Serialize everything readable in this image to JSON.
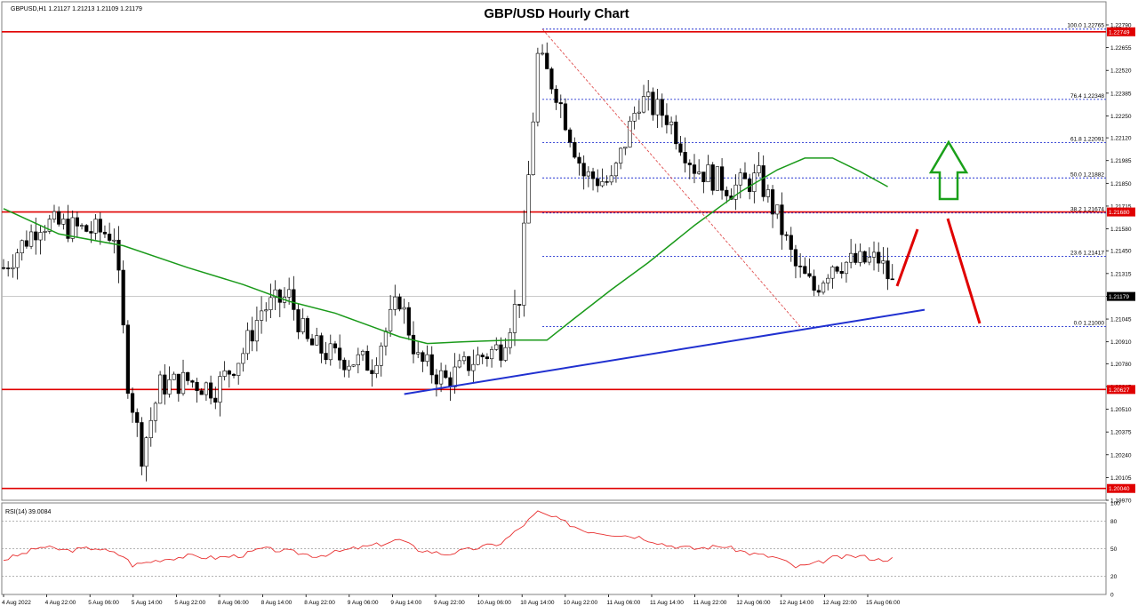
{
  "header": {
    "symbol_info": "GBPUSD,H1  1.21127 1.21213 1.21109 1.21179",
    "title": "GBP/USD Hourly Chart"
  },
  "colors": {
    "bull_candle": "#ffffff",
    "bear_candle": "#000000",
    "ma": "#1a9a1a",
    "support_line": "#2030d0",
    "horizontal_level": "#e00000",
    "fib": "#2030d0",
    "fib_trend": "#e05050",
    "arrow_up": "#1aa01a",
    "arrow_red": "#e00000",
    "rsi": "#e83030",
    "current_price_label": "#000000"
  },
  "price_axis": {
    "ticks": [
      "1.22790",
      "1.22655",
      "1.22520",
      "1.22385",
      "1.22250",
      "1.22120",
      "1.21985",
      "1.21850",
      "1.21715",
      "1.21580",
      "1.21450",
      "1.21315",
      "1.21180",
      "1.21045",
      "1.20910",
      "1.20780",
      "1.20645",
      "1.20510",
      "1.20375",
      "1.20240",
      "1.20105",
      "1.19970"
    ],
    "range": [
      1.1997,
      1.2279
    ]
  },
  "levels": [
    {
      "price": 1.22749,
      "label": "1.22749"
    },
    {
      "price": 1.2168,
      "label": "1.21680"
    },
    {
      "price": 1.20627,
      "label": "1.20627"
    },
    {
      "price": 1.2004,
      "label": "1.20040"
    }
  ],
  "current_price": {
    "price": 1.21179,
    "label": "1.21179"
  },
  "fib_levels": [
    {
      "price": 1.22765,
      "label": "100.0  1.22765"
    },
    {
      "price": 1.22348,
      "label": "76.4  1.22348"
    },
    {
      "price": 1.22091,
      "label": "61.8  1.22091"
    },
    {
      "price": 1.21882,
      "label": "50.0  1.21882"
    },
    {
      "price": 1.21674,
      "label": "38.2  1.21674"
    },
    {
      "price": 1.21417,
      "label": "23.6  1.21417"
    },
    {
      "price": 1.21,
      "label": "0.0  1.21000"
    }
  ],
  "rsi": {
    "label": "RSI(14) 39.0084",
    "axis_ticks": [
      "100",
      "80",
      "50",
      "20",
      "0"
    ],
    "levels": [
      80,
      50,
      20
    ]
  },
  "time_axis": {
    "labels": [
      "4 Aug 2022",
      "4 Aug 22:00",
      "5 Aug 06:00",
      "5 Aug 14:00",
      "5 Aug 22:00",
      "8 Aug 06:00",
      "8 Aug 14:00",
      "8 Aug 22:00",
      "9 Aug 06:00",
      "9 Aug 14:00",
      "9 Aug 22:00",
      "10 Aug 06:00",
      "10 Aug 14:00",
      "10 Aug 22:00",
      "11 Aug 06:00",
      "11 Aug 14:00",
      "11 Aug 22:00",
      "12 Aug 06:00",
      "12 Aug 14:00",
      "12 Aug 22:00",
      "15 Aug 06:00"
    ]
  },
  "chart_data": {
    "type": "candlestick",
    "title": "GBP/USD Hourly Chart",
    "symbol": "GBPUSD",
    "timeframe": "H1",
    "ylim": [
      1.1997,
      1.2279
    ],
    "close_path": [
      [
        0,
        1.2135
      ],
      [
        8,
        1.2162
      ],
      [
        16,
        1.2158
      ],
      [
        24,
        1.2155
      ],
      [
        27,
        1.2068
      ],
      [
        30,
        1.2025
      ],
      [
        34,
        1.2065
      ],
      [
        40,
        1.2068
      ],
      [
        46,
        1.2063
      ],
      [
        52,
        1.2085
      ],
      [
        56,
        1.211
      ],
      [
        62,
        1.2118
      ],
      [
        66,
        1.209
      ],
      [
        72,
        1.2082
      ],
      [
        80,
        1.2078
      ],
      [
        86,
        1.2117
      ],
      [
        90,
        1.208
      ],
      [
        96,
        1.2068
      ],
      [
        102,
        1.208
      ],
      [
        108,
        1.2088
      ],
      [
        112,
        1.2118
      ],
      [
        116,
        1.226
      ],
      [
        120,
        1.224
      ],
      [
        126,
        1.219
      ],
      [
        132,
        1.2185
      ],
      [
        138,
        1.2235
      ],
      [
        144,
        1.2225
      ],
      [
        150,
        1.2195
      ],
      [
        158,
        1.2182
      ],
      [
        164,
        1.2188
      ],
      [
        168,
        1.2165
      ],
      [
        172,
        1.2135
      ],
      [
        176,
        1.2122
      ],
      [
        180,
        1.2138
      ],
      [
        186,
        1.2138
      ],
      [
        190,
        1.214
      ],
      [
        193,
        1.2125
      ]
    ],
    "moving_average": [
      [
        0,
        1.217
      ],
      [
        12,
        1.2155
      ],
      [
        26,
        1.2148
      ],
      [
        40,
        1.2135
      ],
      [
        52,
        1.2125
      ],
      [
        62,
        1.2115
      ],
      [
        72,
        1.2108
      ],
      [
        80,
        1.21
      ],
      [
        86,
        1.2094
      ],
      [
        92,
        1.209
      ],
      [
        100,
        1.2091
      ],
      [
        110,
        1.2092
      ],
      [
        118,
        1.2092
      ],
      [
        124,
        1.2105
      ],
      [
        132,
        1.2122
      ],
      [
        140,
        1.2138
      ],
      [
        150,
        1.216
      ],
      [
        160,
        1.218
      ],
      [
        168,
        1.2193
      ],
      [
        174,
        1.22
      ],
      [
        180,
        1.22
      ],
      [
        186,
        1.2192
      ],
      [
        192,
        1.2183
      ]
    ],
    "support_trendline": [
      [
        87,
        1.206
      ],
      [
        200,
        1.211
      ]
    ],
    "fib_trendline": [
      [
        117,
        1.22765
      ],
      [
        173,
        1.21
      ]
    ],
    "rsi_values": [
      [
        0,
        38
      ],
      [
        4,
        44
      ],
      [
        8,
        52
      ],
      [
        14,
        48
      ],
      [
        20,
        51
      ],
      [
        26,
        42
      ],
      [
        28,
        32
      ],
      [
        34,
        38
      ],
      [
        40,
        42
      ],
      [
        46,
        40
      ],
      [
        52,
        43
      ],
      [
        56,
        50
      ],
      [
        62,
        47
      ],
      [
        68,
        42
      ],
      [
        76,
        50
      ],
      [
        82,
        55
      ],
      [
        86,
        60
      ],
      [
        90,
        49
      ],
      [
        96,
        44
      ],
      [
        102,
        50
      ],
      [
        108,
        56
      ],
      [
        112,
        72
      ],
      [
        116,
        90
      ],
      [
        120,
        83
      ],
      [
        126,
        70
      ],
      [
        132,
        66
      ],
      [
        138,
        63
      ],
      [
        144,
        54
      ],
      [
        150,
        50
      ],
      [
        156,
        53
      ],
      [
        162,
        45
      ],
      [
        168,
        40
      ],
      [
        172,
        30
      ],
      [
        176,
        33
      ],
      [
        180,
        40
      ],
      [
        186,
        42
      ],
      [
        190,
        38
      ],
      [
        193,
        39
      ]
    ]
  }
}
